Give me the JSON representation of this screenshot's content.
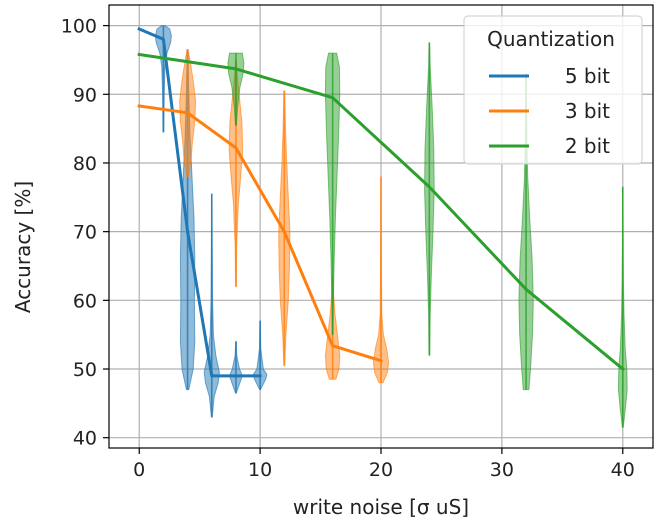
{
  "chart_data": {
    "type": "line",
    "xlabel": "write noise [σ uS]",
    "ylabel": "Accuracy [%]",
    "xlim": [
      -2.5,
      42.5
    ],
    "ylim": [
      38.5,
      103
    ],
    "xticks": [
      0,
      10,
      20,
      30,
      40
    ],
    "yticks": [
      40,
      50,
      60,
      70,
      80,
      90,
      100
    ],
    "grid": true,
    "legend": {
      "title": "Quantization",
      "placement": "top-right"
    },
    "series": [
      {
        "name": "5 bit",
        "color": "#1f77b4",
        "x": [
          0,
          2,
          4,
          6,
          8,
          10
        ],
        "y": [
          99.5,
          98,
          70,
          49,
          49,
          49
        ],
        "violins": [
          {
            "x": 2,
            "profile": [
              [
                84.5,
                0.05
              ],
              [
                90,
                0.1
              ],
              [
                94,
                0.2
              ],
              [
                96,
                0.45
              ],
              [
                97.5,
                0.9
              ],
              [
                98.5,
                1.0
              ],
              [
                99.5,
                0.8
              ],
              [
                100,
                0.2
              ]
            ]
          },
          {
            "x": 4,
            "profile": [
              [
                47,
                0.15
              ],
              [
                50,
                0.7
              ],
              [
                54,
                0.9
              ],
              [
                60,
                0.85
              ],
              [
                66,
                0.9
              ],
              [
                72,
                0.8
              ],
              [
                78,
                0.55
              ],
              [
                84,
                0.3
              ],
              [
                90,
                0.15
              ],
              [
                96.5,
                0.05
              ]
            ]
          },
          {
            "x": 6,
            "profile": [
              [
                43,
                0.05
              ],
              [
                46,
                0.3
              ],
              [
                48,
                0.8
              ],
              [
                49.5,
                0.95
              ],
              [
                52,
                0.5
              ],
              [
                55,
                0.2
              ],
              [
                60,
                0.1
              ],
              [
                68,
                0.05
              ],
              [
                75.5,
                0.02
              ]
            ]
          },
          {
            "x": 8,
            "profile": [
              [
                46.5,
                0.05
              ],
              [
                48,
                0.5
              ],
              [
                49,
                0.8
              ],
              [
                50,
                0.45
              ],
              [
                52,
                0.1
              ],
              [
                54,
                0.03
              ]
            ]
          },
          {
            "x": 10,
            "profile": [
              [
                47,
                0.05
              ],
              [
                48.5,
                0.7
              ],
              [
                49.2,
                0.85
              ],
              [
                50,
                0.4
              ],
              [
                53,
                0.08
              ],
              [
                57,
                0.02
              ]
            ]
          }
        ]
      },
      {
        "name": "3 bit",
        "color": "#ff7f0e",
        "x": [
          0,
          4,
          8,
          12,
          16,
          20
        ],
        "y": [
          88.3,
          87.3,
          82.2,
          70,
          53.4,
          51.2
        ],
        "violins": [
          {
            "x": 4,
            "profile": [
              [
                78,
                0.1
              ],
              [
                80,
                0.4
              ],
              [
                83,
                0.6
              ],
              [
                86,
                0.9
              ],
              [
                89,
                1.0
              ],
              [
                92,
                0.7
              ],
              [
                95,
                0.3
              ],
              [
                96.5,
                0.05
              ]
            ]
          },
          {
            "x": 8,
            "profile": [
              [
                62,
                0.04
              ],
              [
                68,
                0.1
              ],
              [
                74,
                0.3
              ],
              [
                78,
                0.6
              ],
              [
                82,
                0.85
              ],
              [
                86,
                0.75
              ],
              [
                90,
                0.4
              ],
              [
                93,
                0.15
              ],
              [
                95,
                0.05
              ]
            ]
          },
          {
            "x": 12,
            "profile": [
              [
                50.5,
                0.05
              ],
              [
                55,
                0.2
              ],
              [
                60,
                0.5
              ],
              [
                65,
                0.65
              ],
              [
                70,
                0.7
              ],
              [
                75,
                0.5
              ],
              [
                80,
                0.3
              ],
              [
                85,
                0.15
              ],
              [
                90.5,
                0.05
              ]
            ]
          },
          {
            "x": 16,
            "profile": [
              [
                48.5,
                0.4
              ],
              [
                50,
                0.8
              ],
              [
                52,
                0.9
              ],
              [
                54,
                0.7
              ],
              [
                56,
                0.5
              ],
              [
                58,
                0.3
              ],
              [
                61,
                0.12
              ],
              [
                63.5,
                0.05
              ]
            ]
          },
          {
            "x": 20,
            "profile": [
              [
                48,
                0.25
              ],
              [
                49.5,
                0.8
              ],
              [
                51,
                0.95
              ],
              [
                53,
                0.7
              ],
              [
                55,
                0.3
              ],
              [
                58,
                0.1
              ],
              [
                65,
                0.05
              ],
              [
                72,
                0.02
              ],
              [
                78,
                0.01
              ]
            ]
          }
        ]
      },
      {
        "name": "2 bit",
        "color": "#2ca02c",
        "x": [
          0,
          8,
          16,
          24,
          32,
          40
        ],
        "y": [
          95.8,
          93.7,
          89.5,
          76.5,
          61.6,
          50
        ],
        "violins": [
          {
            "x": 8,
            "profile": [
              [
                85.5,
                0.05
              ],
              [
                88,
                0.2
              ],
              [
                91,
                0.5
              ],
              [
                93,
                0.9
              ],
              [
                94.5,
                1.0
              ],
              [
                96,
                0.8
              ]
            ]
          },
          {
            "x": 16,
            "profile": [
              [
                55,
                0.05
              ],
              [
                60,
                0.1
              ],
              [
                66,
                0.2
              ],
              [
                72,
                0.35
              ],
              [
                78,
                0.55
              ],
              [
                84,
                0.75
              ],
              [
                90,
                0.9
              ],
              [
                94,
                0.85
              ],
              [
                96,
                0.5
              ]
            ]
          },
          {
            "x": 24,
            "profile": [
              [
                52,
                0.04
              ],
              [
                58,
                0.1
              ],
              [
                64,
                0.25
              ],
              [
                70,
                0.45
              ],
              [
                76,
                0.6
              ],
              [
                82,
                0.55
              ],
              [
                88,
                0.35
              ],
              [
                94,
                0.1
              ],
              [
                97.5,
                0.03
              ]
            ]
          },
          {
            "x": 32,
            "profile": [
              [
                47,
                0.35
              ],
              [
                50,
                0.55
              ],
              [
                55,
                0.8
              ],
              [
                60,
                0.9
              ],
              [
                66,
                0.75
              ],
              [
                72,
                0.45
              ],
              [
                78,
                0.2
              ],
              [
                84,
                0.1
              ],
              [
                89,
                0.06
              ],
              [
                93,
                0.04
              ]
            ]
          },
          {
            "x": 40,
            "profile": [
              [
                41.5,
                0.05
              ],
              [
                44,
                0.3
              ],
              [
                47,
                0.55
              ],
              [
                50,
                0.5
              ],
              [
                53,
                0.3
              ],
              [
                58,
                0.15
              ],
              [
                63,
                0.08
              ],
              [
                68,
                0.05
              ],
              [
                73,
                0.03
              ],
              [
                76.5,
                0.02
              ]
            ]
          }
        ]
      }
    ]
  }
}
